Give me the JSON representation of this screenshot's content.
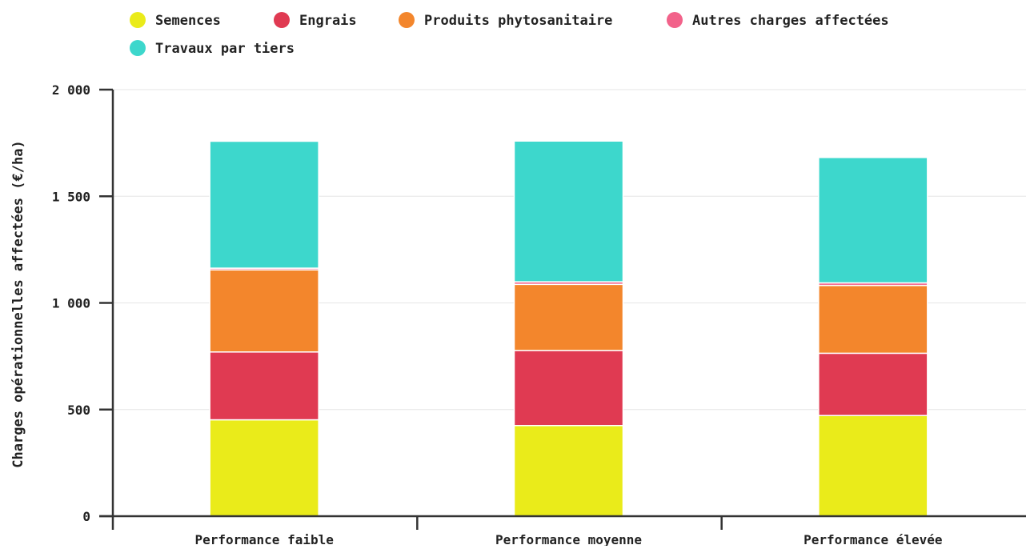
{
  "chart_data": {
    "type": "bar",
    "stacked": true,
    "categories": [
      "Performance faible",
      "Performance moyenne",
      "Performance élevée"
    ],
    "series": [
      {
        "name": "Semences",
        "color": "#eaeb1a",
        "values": [
          452,
          425,
          472
        ]
      },
      {
        "name": "Engrais",
        "color": "#e03a52",
        "values": [
          318,
          352,
          292
        ]
      },
      {
        "name": "Produits phytosanitaire",
        "color": "#f3862c",
        "values": [
          385,
          310,
          318
        ]
      },
      {
        "name": "Autres charges affectées",
        "color": "#f2628a",
        "values": [
          8,
          12,
          12
        ]
      },
      {
        "name": "Travaux par tiers",
        "color": "#3dd7cc",
        "values": [
          595,
          660,
          588
        ]
      }
    ],
    "ylabel": "Charges opérationnelles affectées (€/ha)",
    "xlabel": "",
    "ylim": [
      0,
      2000
    ],
    "yticks": [
      0,
      500,
      1000,
      1500,
      2000
    ],
    "ytick_labels": [
      "0",
      "500",
      "1 000",
      "1 500",
      "2 000"
    ],
    "grid": true,
    "legend_position": "top-left"
  }
}
